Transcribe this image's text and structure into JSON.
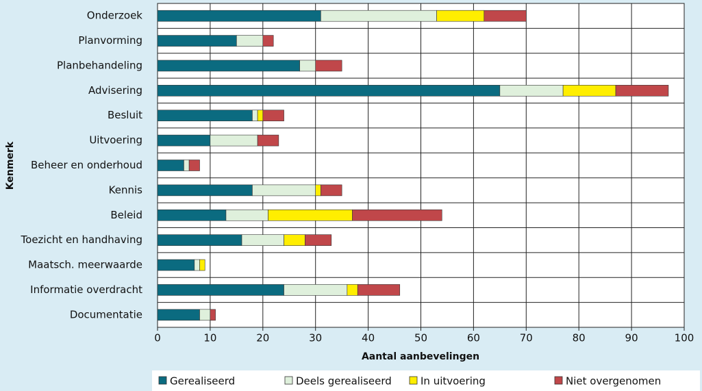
{
  "chart_data": {
    "type": "bar",
    "orientation": "horizontal",
    "stacked": true,
    "xlabel": "Aantal aanbevelingen",
    "ylabel": "Kenmerk",
    "categories": [
      "Onderzoek",
      "Planvorming",
      "Planbehandeling",
      "Advisering",
      "Besluit",
      "Uitvoering",
      "Beheer en onderhoud",
      "Kennis",
      "Beleid",
      "Toezicht en handhaving",
      "Maatsch. meerwaarde",
      "Informatie overdracht",
      "Documentatie"
    ],
    "series": [
      {
        "name": "Gerealiseerd",
        "color": "#0b6b80",
        "values": [
          31,
          15,
          27,
          65,
          18,
          10,
          5,
          18,
          13,
          16,
          7,
          24,
          8
        ]
      },
      {
        "name": "Deels gerealiseerd",
        "color": "#dff0dc",
        "values": [
          22,
          5,
          3,
          12,
          1,
          9,
          1,
          12,
          8,
          8,
          1,
          12,
          2
        ]
      },
      {
        "name": "In uitvoering",
        "color": "#ffee00",
        "values": [
          9,
          0,
          0,
          10,
          1,
          0,
          0,
          1,
          16,
          4,
          1,
          2,
          0
        ]
      },
      {
        "name": "Niet overgenomen",
        "color": "#c0474a",
        "values": [
          8,
          2,
          5,
          10,
          4,
          4,
          2,
          4,
          17,
          5,
          0,
          8,
          1
        ]
      }
    ],
    "xlim": [
      0,
      100
    ],
    "xticks": [
      0,
      10,
      20,
      30,
      40,
      50,
      60,
      70,
      80,
      90,
      100
    ],
    "grid": true,
    "legend": "bottom"
  }
}
